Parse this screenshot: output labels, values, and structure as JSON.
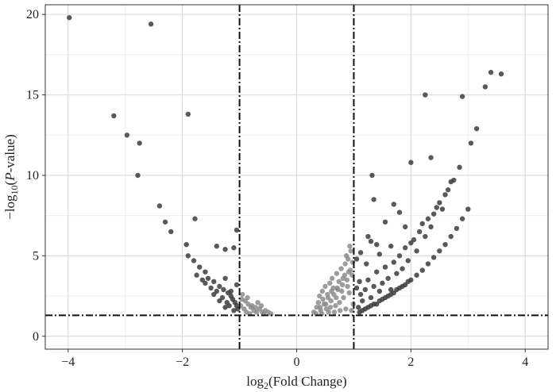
{
  "chart_data": {
    "type": "scatter",
    "title": "",
    "xlabel": {
      "base": "log",
      "sub": "2",
      "rest": "(Fold Change)"
    },
    "ylabel": {
      "pre": "−log",
      "sub": "10",
      "open": "(",
      "italic": "P",
      "rest": "-value)"
    },
    "xlim": [
      -4.4,
      4.4
    ],
    "ylim": [
      -0.8,
      20.6
    ],
    "x_ticks": [
      -4,
      -2,
      0,
      2,
      4
    ],
    "x_tick_labels": [
      "−4",
      "−2",
      "0",
      "2",
      "4"
    ],
    "y_ticks": [
      0,
      5,
      10,
      15,
      20
    ],
    "y_tick_labels": [
      "0",
      "5",
      "10",
      "15",
      "20"
    ],
    "grid": true,
    "thresholds": {
      "fold_change": [
        -1,
        1
      ],
      "p_value_line": 1.3
    },
    "colors": {
      "significant": "#3c3c3c",
      "not_significant": "#8c8c8c",
      "threshold_line": "#111111",
      "grid": "#dddddd"
    },
    "series": [
      {
        "values": [
          [
            -3.98,
            19.8
          ],
          [
            -2.55,
            19.4
          ],
          [
            -3.2,
            13.7
          ],
          [
            -1.9,
            13.8
          ],
          [
            -2.97,
            12.5
          ],
          [
            -2.75,
            12.0
          ],
          [
            -2.78,
            10.0
          ],
          [
            -2.4,
            8.1
          ],
          [
            -2.3,
            7.1
          ],
          [
            -1.78,
            7.3
          ],
          [
            -2.2,
            6.5
          ],
          [
            -1.93,
            5.7
          ],
          [
            -1.05,
            6.6
          ],
          [
            -1.4,
            5.6
          ],
          [
            -1.25,
            5.4
          ],
          [
            -1.1,
            5.5
          ],
          [
            -1.9,
            5.0
          ],
          [
            -1.8,
            4.7
          ],
          [
            -1.7,
            4.3
          ],
          [
            -1.6,
            4.0
          ],
          [
            -1.55,
            3.6
          ],
          [
            -1.45,
            3.4
          ],
          [
            -1.35,
            3.1
          ],
          [
            -1.28,
            2.9
          ],
          [
            -1.2,
            2.7
          ],
          [
            -1.15,
            2.5
          ],
          [
            -1.12,
            2.3
          ],
          [
            -1.08,
            2.1
          ],
          [
            -1.05,
            1.9
          ],
          [
            -1.03,
            1.7
          ],
          [
            -1.6,
            3.3
          ],
          [
            -1.5,
            3.0
          ],
          [
            -1.4,
            2.8
          ],
          [
            -1.3,
            2.4
          ],
          [
            -1.22,
            2.1
          ],
          [
            -1.18,
            1.9
          ],
          [
            -1.35,
            2.2
          ],
          [
            -1.25,
            1.8
          ],
          [
            -1.1,
            1.6
          ],
          [
            -1.45,
            2.6
          ],
          [
            -1.65,
            3.5
          ],
          [
            -1.75,
            3.8
          ],
          [
            -1.15,
            2.8
          ],
          [
            -1.05,
            3.2
          ],
          [
            -1.25,
            3.6
          ],
          [
            1.05,
            3.0
          ],
          [
            1.1,
            3.4
          ],
          [
            1.12,
            2.6
          ],
          [
            1.15,
            2.2
          ],
          [
            1.2,
            2.9
          ],
          [
            1.25,
            3.5
          ],
          [
            1.3,
            2.4
          ],
          [
            1.35,
            3.1
          ],
          [
            1.4,
            4.0
          ],
          [
            1.45,
            2.8
          ],
          [
            1.5,
            3.3
          ],
          [
            1.55,
            4.3
          ],
          [
            1.6,
            3.6
          ],
          [
            1.65,
            2.9
          ],
          [
            1.7,
            4.6
          ],
          [
            1.75,
            3.9
          ],
          [
            1.8,
            5.0
          ],
          [
            1.85,
            4.2
          ],
          [
            1.9,
            5.5
          ],
          [
            1.95,
            4.7
          ],
          [
            2.0,
            5.8
          ],
          [
            2.05,
            6.0
          ],
          [
            2.1,
            5.3
          ],
          [
            2.15,
            6.5
          ],
          [
            2.2,
            7.0
          ],
          [
            2.25,
            6.2
          ],
          [
            2.3,
            7.3
          ],
          [
            2.35,
            6.8
          ],
          [
            2.4,
            7.6
          ],
          [
            2.45,
            8.0
          ],
          [
            2.5,
            8.3
          ],
          [
            2.55,
            7.9
          ],
          [
            2.6,
            8.8
          ],
          [
            2.65,
            9.1
          ],
          [
            2.7,
            9.6
          ],
          [
            2.75,
            9.7
          ],
          [
            2.85,
            10.5
          ],
          [
            2.0,
            10.8
          ],
          [
            2.35,
            11.1
          ],
          [
            2.25,
            15.0
          ],
          [
            2.9,
            14.9
          ],
          [
            3.05,
            12.0
          ],
          [
            3.15,
            12.9
          ],
          [
            3.3,
            15.5
          ],
          [
            3.4,
            16.4
          ],
          [
            3.58,
            16.3
          ],
          [
            1.32,
            10.0
          ],
          [
            1.35,
            8.5
          ],
          [
            1.7,
            8.2
          ],
          [
            1.25,
            6.2
          ],
          [
            1.4,
            5.7
          ],
          [
            1.8,
            7.7
          ],
          [
            1.55,
            7.1
          ],
          [
            1.9,
            6.8
          ],
          [
            1.05,
            4.8
          ],
          [
            1.12,
            5.2
          ],
          [
            1.22,
            4.5
          ],
          [
            1.3,
            5.9
          ],
          [
            1.45,
            5.1
          ],
          [
            1.65,
            5.6
          ],
          [
            1.08,
            1.8
          ],
          [
            1.1,
            1.5
          ],
          [
            1.2,
            1.7
          ],
          [
            1.3,
            1.9
          ],
          [
            1.4,
            2.0
          ],
          [
            1.5,
            2.3
          ],
          [
            1.6,
            2.5
          ],
          [
            1.7,
            2.7
          ],
          [
            1.8,
            3.0
          ],
          [
            1.9,
            3.2
          ],
          [
            2.0,
            3.5
          ],
          [
            2.1,
            3.8
          ],
          [
            2.2,
            4.1
          ],
          [
            2.3,
            4.5
          ],
          [
            2.4,
            4.9
          ],
          [
            2.5,
            5.3
          ],
          [
            2.6,
            5.7
          ],
          [
            2.7,
            6.2
          ],
          [
            2.8,
            6.7
          ],
          [
            2.9,
            7.3
          ],
          [
            3.0,
            7.9
          ],
          [
            1.15,
            1.6
          ],
          [
            1.25,
            1.8
          ],
          [
            1.35,
            2.0
          ],
          [
            1.45,
            2.2
          ],
          [
            1.55,
            2.4
          ],
          [
            1.65,
            2.6
          ],
          [
            1.75,
            2.9
          ],
          [
            1.85,
            3.1
          ],
          [
            1.95,
            3.4
          ]
        ],
        "color": "#3c3c3c"
      },
      {
        "values": [
          [
            -0.95,
            2.6
          ],
          [
            -0.9,
            2.2
          ],
          [
            -0.85,
            2.0
          ],
          [
            -0.8,
            1.8
          ],
          [
            -0.75,
            1.6
          ],
          [
            -0.7,
            1.5
          ],
          [
            -0.65,
            1.7
          ],
          [
            -0.6,
            1.5
          ],
          [
            -0.55,
            1.6
          ],
          [
            -0.5,
            1.5
          ],
          [
            -0.45,
            1.4
          ],
          [
            -0.98,
            1.9
          ],
          [
            -0.92,
            1.7
          ],
          [
            -0.88,
            1.5
          ],
          [
            -0.82,
            1.4
          ],
          [
            -0.78,
            1.9
          ],
          [
            -0.72,
            1.8
          ],
          [
            -0.68,
            2.1
          ],
          [
            -0.62,
            1.9
          ],
          [
            -0.58,
            1.4
          ],
          [
            -0.96,
            2.3
          ],
          [
            -0.86,
            2.4
          ],
          [
            0.3,
            1.5
          ],
          [
            0.35,
            1.8
          ],
          [
            0.38,
            2.1
          ],
          [
            0.4,
            2.5
          ],
          [
            0.42,
            1.6
          ],
          [
            0.45,
            2.8
          ],
          [
            0.48,
            2.0
          ],
          [
            0.5,
            3.1
          ],
          [
            0.52,
            1.7
          ],
          [
            0.55,
            2.4
          ],
          [
            0.58,
            3.3
          ],
          [
            0.6,
            2.2
          ],
          [
            0.62,
            3.6
          ],
          [
            0.65,
            2.6
          ],
          [
            0.68,
            1.9
          ],
          [
            0.7,
            3.9
          ],
          [
            0.72,
            2.9
          ],
          [
            0.75,
            2.1
          ],
          [
            0.78,
            4.2
          ],
          [
            0.8,
            3.2
          ],
          [
            0.82,
            2.4
          ],
          [
            0.85,
            4.5
          ],
          [
            0.88,
            3.5
          ],
          [
            0.9,
            4.8
          ],
          [
            0.92,
            2.7
          ],
          [
            0.95,
            5.3
          ],
          [
            0.97,
            3.8
          ],
          [
            0.99,
            2.0
          ],
          [
            0.44,
            1.4
          ],
          [
            0.56,
            1.5
          ],
          [
            0.66,
            1.5
          ],
          [
            0.76,
            1.6
          ],
          [
            0.86,
            1.7
          ],
          [
            0.96,
            1.6
          ],
          [
            0.34,
            1.4
          ],
          [
            0.46,
            2.3
          ],
          [
            0.54,
            2.6
          ],
          [
            0.64,
            3.0
          ],
          [
            0.74,
            3.4
          ],
          [
            0.84,
            3.8
          ],
          [
            0.94,
            4.1
          ],
          [
            0.59,
            1.8
          ],
          [
            0.69,
            2.4
          ],
          [
            0.79,
            2.8
          ],
          [
            0.89,
            3.1
          ],
          [
            0.98,
            4.6
          ],
          [
            0.91,
            4.0
          ],
          [
            0.81,
            3.6
          ],
          [
            0.71,
            3.0
          ],
          [
            0.61,
            2.8
          ],
          [
            0.51,
            2.0
          ],
          [
            0.41,
            1.8
          ],
          [
            0.93,
            5.6
          ],
          [
            0.87,
            5.0
          ]
        ],
        "color": "#8c8c8c"
      }
    ]
  }
}
